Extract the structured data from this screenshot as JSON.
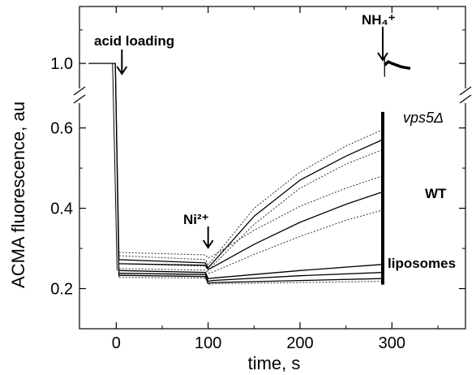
{
  "chart_data": {
    "type": "line",
    "xlabel": "time, s",
    "ylabel": "ACMA fluorescence, au",
    "xlim": [
      -40,
      380
    ],
    "ylim_lower": [
      0.1,
      0.67
    ],
    "ylim_upper": [
      0.93,
      1.17
    ],
    "axis_break": true,
    "grid": false,
    "x_ticks": [
      0,
      100,
      200,
      300
    ],
    "y_ticks": [
      0.2,
      0.4,
      0.6,
      1.0
    ],
    "x_tick_labels": [
      "0",
      "100",
      "200",
      "300"
    ],
    "y_tick_labels": [
      "0.2",
      "0.4",
      "0.6",
      "1.0"
    ],
    "annotations": {
      "acid_loading": "acid loading",
      "ni": "Ni²⁺",
      "nh4": "NH₄⁺",
      "vps5": "vps5Δ",
      "wt": "WT",
      "liposomes": "liposomes"
    },
    "events": {
      "acid_loading_x": 0,
      "ni_x": 100,
      "nh4_x": 290
    },
    "series": [
      {
        "name": "vps5Δ",
        "style": "solid",
        "x": [
          -30,
          -8,
          -1,
          3,
          97,
          100,
          104,
          150,
          200,
          250,
          289
        ],
        "y": [
          1.0,
          1.0,
          1.0,
          0.272,
          0.264,
          0.252,
          0.262,
          0.38,
          0.47,
          0.53,
          0.57
        ]
      },
      {
        "name": "",
        "style": "dotted",
        "x": [
          3,
          97,
          100,
          104,
          150,
          200,
          250,
          289
        ],
        "y": [
          0.282,
          0.272,
          0.26,
          0.27,
          0.4,
          0.49,
          0.555,
          0.595
        ]
      },
      {
        "name": "",
        "style": "dotted",
        "x": [
          3,
          97,
          100,
          104,
          150,
          200,
          250,
          289
        ],
        "y": [
          0.262,
          0.256,
          0.244,
          0.255,
          0.36,
          0.45,
          0.51,
          0.545
        ]
      },
      {
        "name": "WT",
        "style": "solid",
        "x": [
          3,
          97,
          100,
          104,
          150,
          200,
          250,
          289
        ],
        "y": [
          0.262,
          0.258,
          0.248,
          0.252,
          0.31,
          0.365,
          0.41,
          0.44
        ]
      },
      {
        "name": "",
        "style": "dotted",
        "x": [
          3,
          97,
          100,
          104,
          150,
          200,
          250,
          289
        ],
        "y": [
          0.29,
          0.284,
          0.276,
          0.28,
          0.345,
          0.405,
          0.45,
          0.48
        ]
      },
      {
        "name": "",
        "style": "dotted",
        "x": [
          3,
          97,
          100,
          104,
          150,
          200,
          250,
          289
        ],
        "y": [
          0.25,
          0.246,
          0.238,
          0.24,
          0.285,
          0.33,
          0.37,
          0.395
        ]
      },
      {
        "name": "liposomes",
        "style": "solid",
        "x": [
          3,
          97,
          100,
          104,
          200,
          289
        ],
        "y": [
          0.245,
          0.24,
          0.225,
          0.226,
          0.245,
          0.26
        ]
      },
      {
        "name": "",
        "style": "solid",
        "x": [
          3,
          97,
          100,
          104,
          200,
          289
        ],
        "y": [
          0.238,
          0.235,
          0.218,
          0.22,
          0.232,
          0.24
        ]
      },
      {
        "name": "",
        "style": "solid",
        "x": [
          3,
          97,
          100,
          104,
          200,
          289
        ],
        "y": [
          0.233,
          0.23,
          0.213,
          0.215,
          0.22,
          0.225
        ]
      },
      {
        "name": "",
        "style": "dotted",
        "x": [
          3,
          97,
          100,
          104,
          200,
          289
        ],
        "y": [
          0.228,
          0.226,
          0.21,
          0.212,
          0.215,
          0.218
        ]
      },
      {
        "name": "",
        "style": "bold",
        "x": [
          292,
          296,
          300,
          310,
          320
        ],
        "y": [
          0.995,
          1.005,
          1.0,
          0.99,
          0.985
        ]
      }
    ]
  }
}
